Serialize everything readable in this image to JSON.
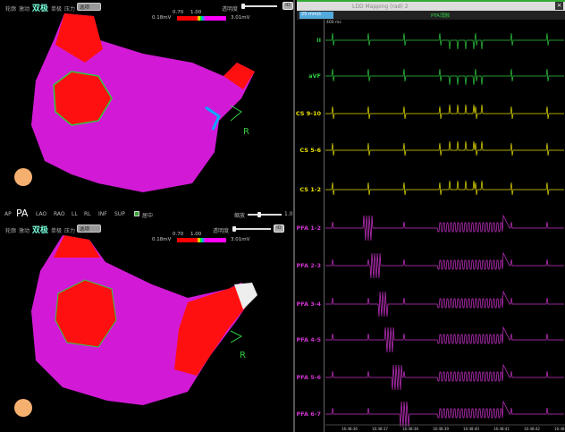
{
  "map_toolbar": {
    "modes": [
      "轮廓",
      "激动",
      "双极",
      "单极",
      "压力"
    ],
    "active_mode": "双极",
    "select_value": "选项",
    "transparency_label": "透明度",
    "transparency_level": 0.05,
    "scale_min": "0.18mV",
    "scale_max": "3.01mV",
    "threshold_low": "0.70",
    "threshold_high": "1.00",
    "button": "IO"
  },
  "view_bar": {
    "views": [
      "AP",
      "PA",
      "LAO",
      "RAO",
      "LL",
      "RL",
      "INF",
      "SUP"
    ],
    "active_view": "PA",
    "center_label": "居中",
    "center_checked": true,
    "zoom_label": "缩放",
    "zoom_value": "1.0"
  },
  "map_labels": {
    "orientation": "R"
  },
  "colors": {
    "map_magenta": "#d21ad6",
    "map_red": "#ff1010",
    "ecg_green": "#2ecc40",
    "cs_yellow": "#e8e000",
    "pfa_magenta": "#cc33cc"
  },
  "ecg": {
    "window_title": "LDD Mapping (rad) 2",
    "speed": "25 mm/s",
    "marker": "PFA消融",
    "scale_bar": "400 ms",
    "channels": [
      {
        "name": "II",
        "color": "#2ecc40"
      },
      {
        "name": "aVF",
        "color": "#2ecc40"
      },
      {
        "name": "CS 9-10",
        "color": "#e8e000"
      },
      {
        "name": "CS 5-6",
        "color": "#e8e000"
      },
      {
        "name": "CS 1-2",
        "color": "#e8e000"
      },
      {
        "name": "PFA 1-2",
        "color": "#cc33cc"
      },
      {
        "name": "PFA 2-3",
        "color": "#cc33cc"
      },
      {
        "name": "PFA 3-4",
        "color": "#cc33cc"
      },
      {
        "name": "PFA 4-5",
        "color": "#cc33cc"
      },
      {
        "name": "PFA 5-6",
        "color": "#cc33cc"
      },
      {
        "name": "PFA 6-7",
        "color": "#cc33cc"
      }
    ],
    "times": [
      "16:48:36",
      "16:48:37",
      "16:48:38",
      "16:48:39",
      "16:48:40",
      "16:48:41",
      "16:48:42",
      "16:48:43"
    ]
  }
}
